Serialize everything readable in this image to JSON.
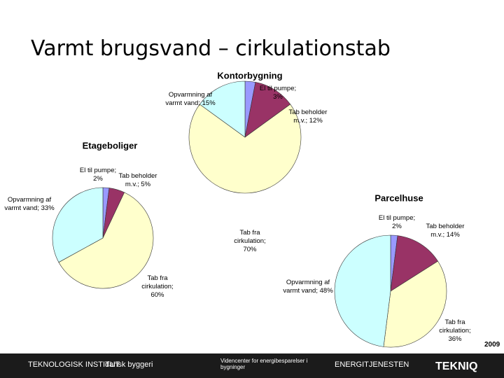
{
  "title": "Varmt brugsvand – cirkulationstab",
  "chart_data": [
    {
      "type": "pie",
      "title": "Kontorbygning",
      "categories": [
        "El til pumpe;",
        "Tab beholder m.v.;",
        "Tab fra cirkulation;",
        "Opvarmning af varmt vand;"
      ],
      "values": [
        3,
        12,
        70,
        15
      ],
      "value_labels": [
        "3%",
        "12%",
        "70%",
        "15%"
      ],
      "colors": [
        "#9999ff",
        "#993366",
        "#ffffcc",
        "#ccffff"
      ]
    },
    {
      "type": "pie",
      "title": "Etageboliger",
      "categories": [
        "El til pumpe;",
        "Tab beholder m.v.;",
        "Tab fra cirkulation;",
        "Opvarmning af varmt vand;"
      ],
      "values": [
        2,
        5,
        60,
        33
      ],
      "value_labels": [
        "2%",
        "5%",
        "60%",
        "33%"
      ],
      "colors": [
        "#9999ff",
        "#993366",
        "#ffffcc",
        "#ccffff"
      ]
    },
    {
      "type": "pie",
      "title": "Parcelhuse",
      "categories": [
        "El til pumpe;",
        "Tab beholder m.v.;",
        "Tab fra cirkulation;",
        "Opvarmning af varmt vand;"
      ],
      "values": [
        2,
        14,
        36,
        48
      ],
      "value_labels": [
        "2%",
        "14%",
        "36%",
        "48%"
      ],
      "colors": [
        "#9999ff",
        "#993366",
        "#ffffcc",
        "#ccffff"
      ]
    }
  ],
  "footer": {
    "year": "2009",
    "logos": [
      "TEKNOLOGISK INSTITUT",
      "dansk byggeri",
      "Videncenter for energibesparelser i bygninger",
      "ENERGITJENESTEN",
      "TEKNIQ"
    ]
  }
}
